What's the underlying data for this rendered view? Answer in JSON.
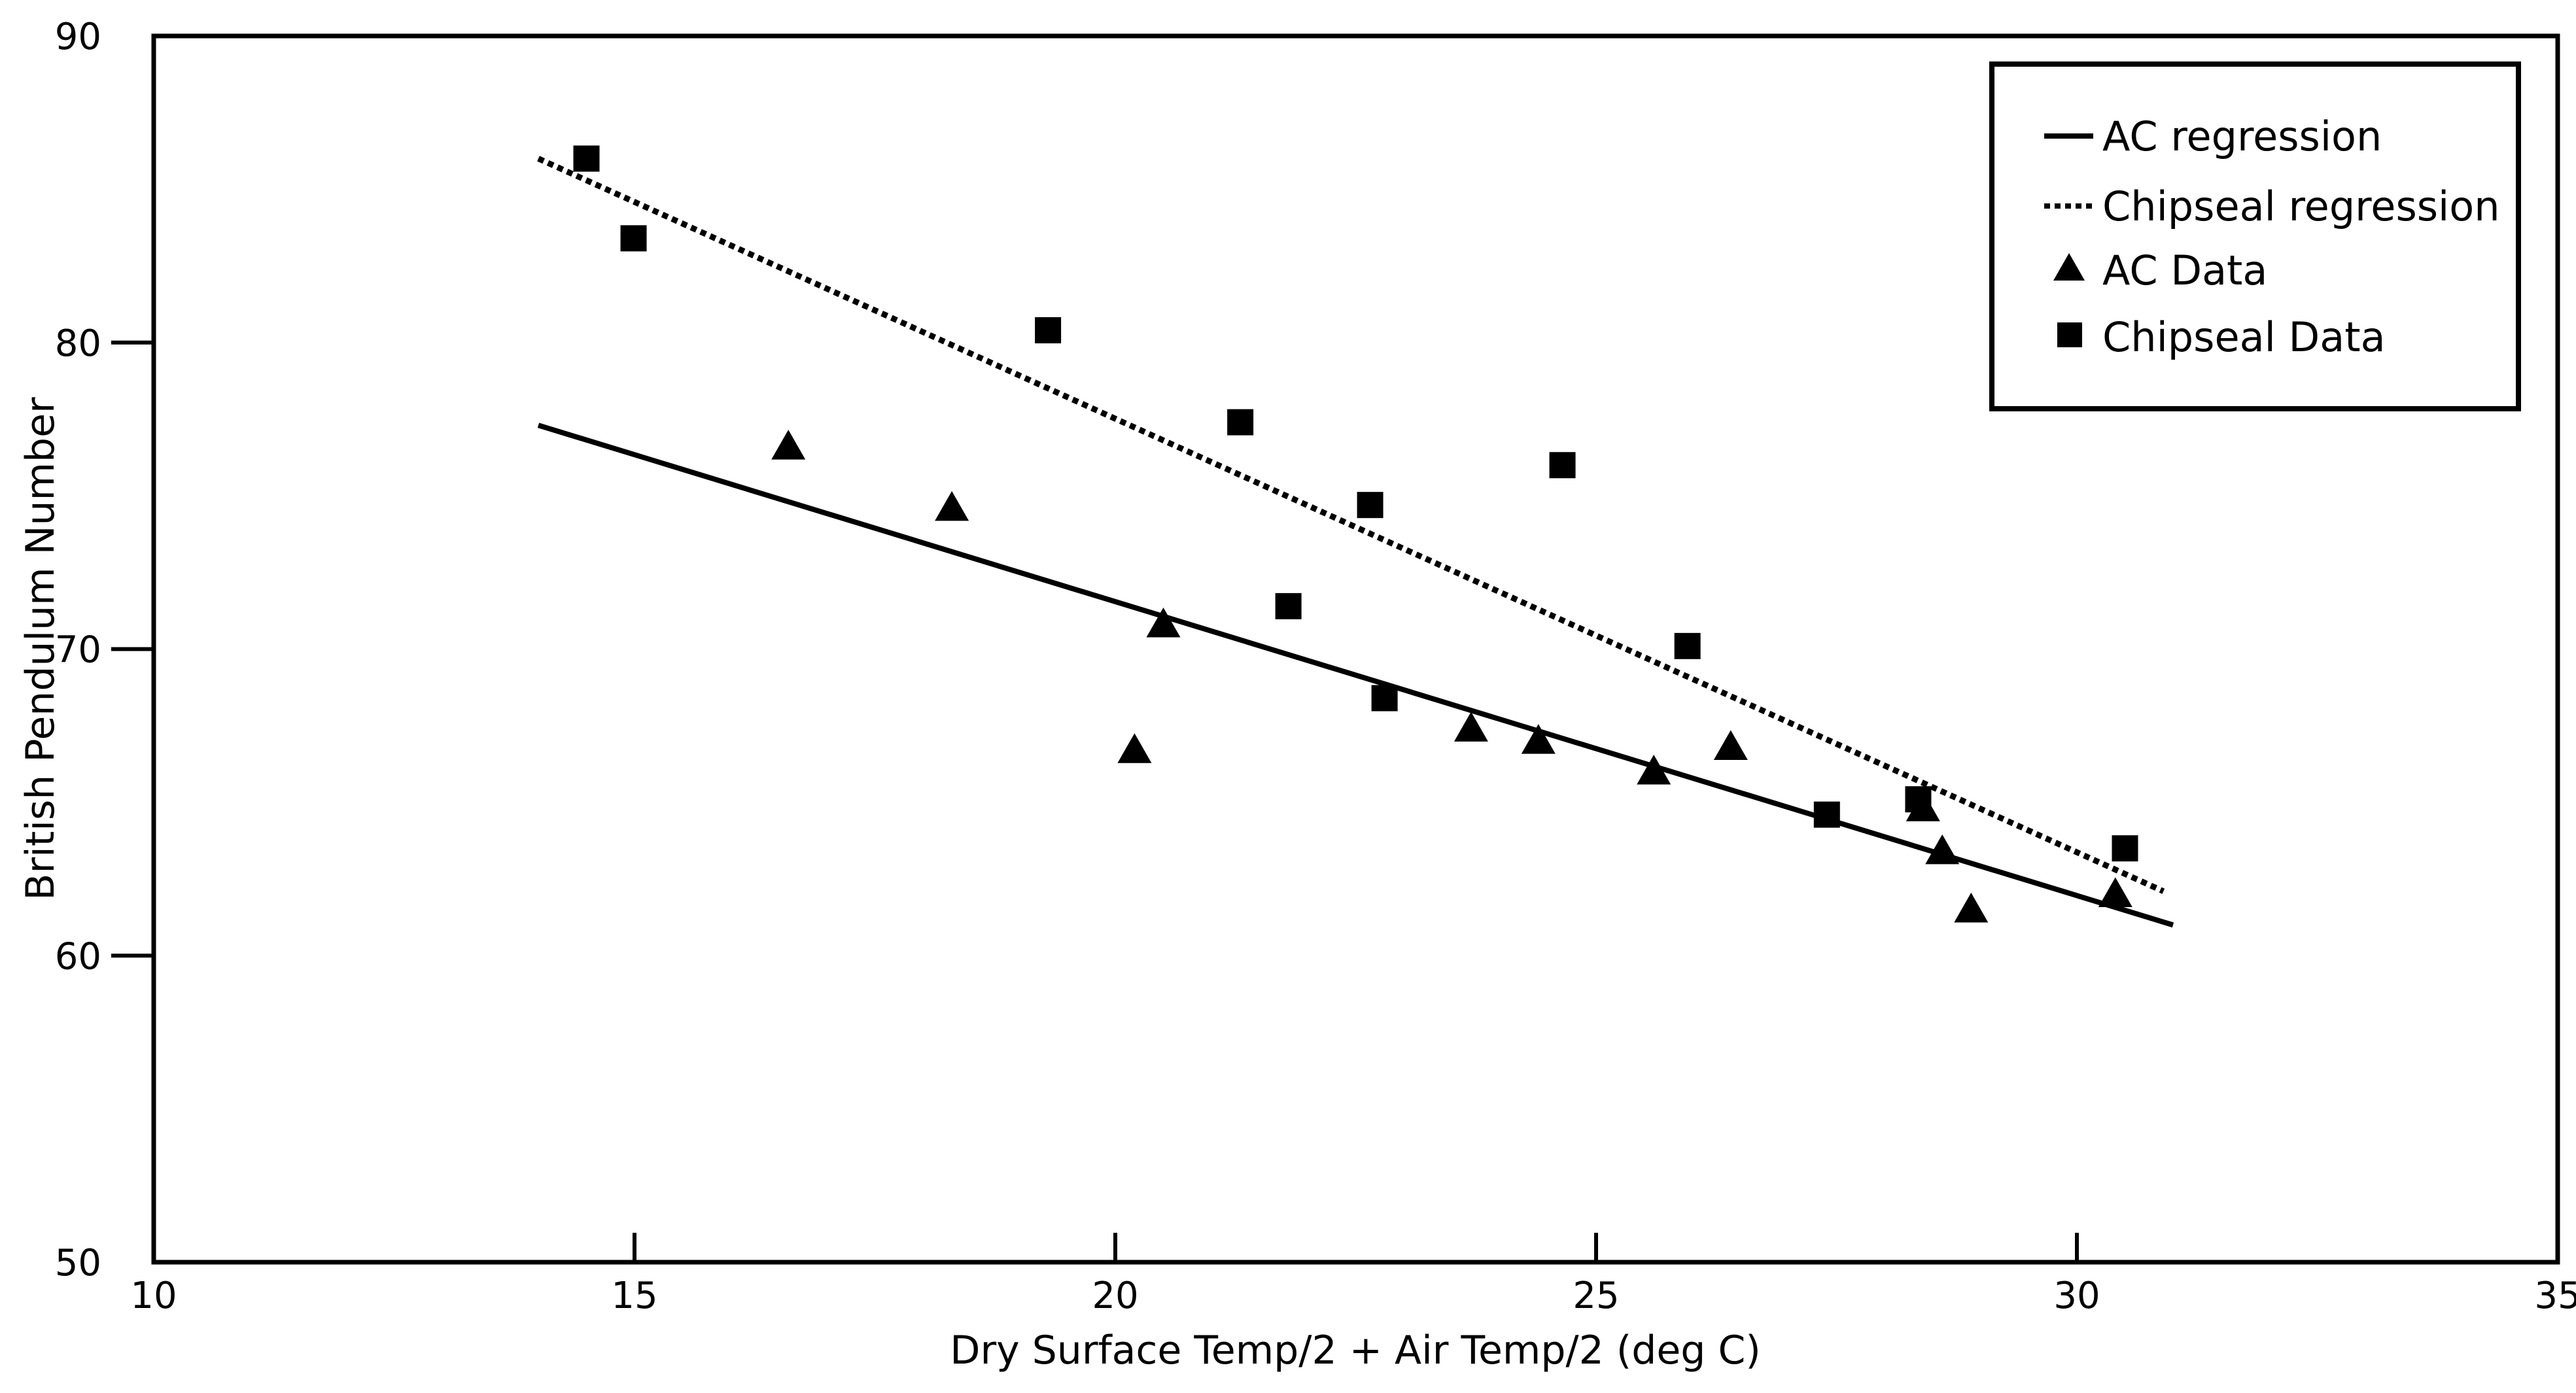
{
  "chart_data": {
    "type": "scatter",
    "title": "",
    "xlabel": "Dry Surface Temp/2 + Air Temp/2 (deg C)",
    "ylabel": "British Pendulum Number",
    "xlim": [
      10,
      35
    ],
    "ylim": [
      50,
      90
    ],
    "xticks": [
      10,
      15,
      20,
      25,
      30,
      35
    ],
    "yticks": [
      50,
      60,
      70,
      80,
      90
    ],
    "grid": false,
    "legend_position": "top-right",
    "series": [
      {
        "name": "AC regression",
        "kind": "line",
        "style": "solid",
        "color": "#000000",
        "x": [
          14.0,
          31.0
        ],
        "y": [
          77.3,
          61.0
        ]
      },
      {
        "name": "Chipseal regression",
        "kind": "line",
        "style": "dotted",
        "color": "#000000",
        "x": [
          14.0,
          30.9
        ],
        "y": [
          86.0,
          62.1
        ]
      },
      {
        "name": "AC Data",
        "kind": "scatter",
        "marker": "triangle",
        "color": "#000000",
        "x": [
          16.6,
          18.3,
          20.2,
          20.5,
          23.7,
          24.4,
          25.6,
          26.4,
          28.4,
          28.6,
          28.9,
          30.4
        ],
        "y": [
          76.6,
          74.6,
          66.7,
          70.8,
          67.4,
          67.0,
          66.0,
          66.8,
          64.8,
          63.4,
          61.5,
          62.0
        ]
      },
      {
        "name": "Chipseal Data",
        "kind": "scatter",
        "marker": "square",
        "color": "#000000",
        "x": [
          14.5,
          14.99,
          19.3,
          21.3,
          21.8,
          22.65,
          22.8,
          24.65,
          25.95,
          27.4,
          28.35,
          30.5
        ],
        "y": [
          86.0,
          83.4,
          80.4,
          77.4,
          71.4,
          74.7,
          68.4,
          76.0,
          70.1,
          64.6,
          65.1,
          63.5
        ]
      }
    ]
  }
}
